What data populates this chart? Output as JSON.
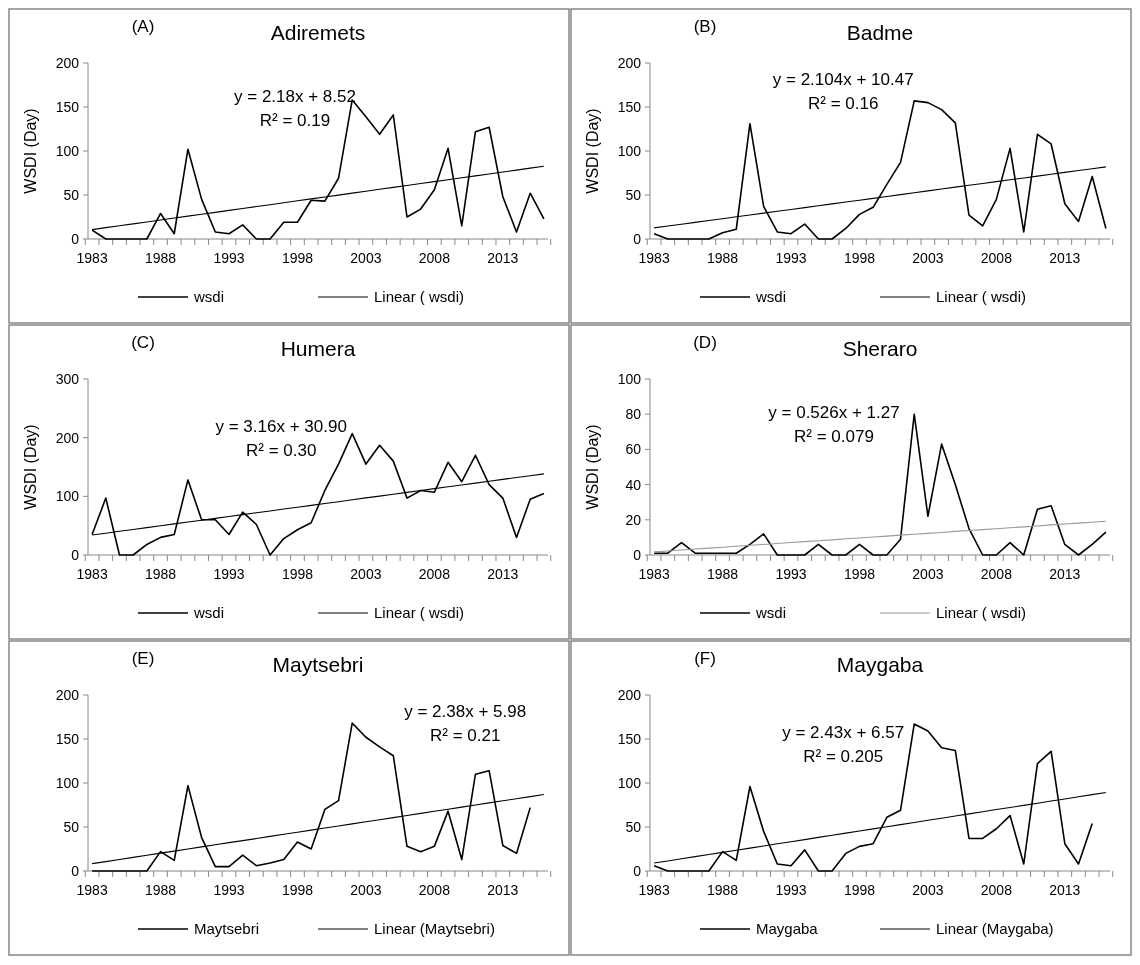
{
  "chart_data": [
    {
      "type": "line",
      "title": "Adiremets",
      "ylabel": "WSDI (Day)",
      "annotations": [
        "(A)",
        "y = 2.18x + 8.52",
        "R² = 0.19"
      ],
      "categories": [
        "1983",
        null,
        null,
        null,
        null,
        "1988",
        null,
        null,
        null,
        null,
        "1993",
        null,
        null,
        null,
        null,
        "1998",
        null,
        null,
        null,
        null,
        "2003",
        null,
        null,
        null,
        null,
        "2008",
        null,
        null,
        null,
        null,
        "2013",
        null,
        null,
        null
      ],
      "ylim": [
        0,
        200
      ],
      "yticks": [
        0,
        50,
        100,
        150,
        200
      ],
      "legend": "bottom",
      "series": [
        {
          "name": "wsdi",
          "color": "#000000",
          "values": [
            10,
            0,
            0,
            0,
            0,
            29,
            6,
            102,
            45,
            8,
            6,
            16,
            0,
            0,
            19,
            19,
            44,
            43,
            69,
            158,
            139,
            119,
            141,
            25,
            34,
            56,
            103,
            15,
            122,
            127,
            48,
            8,
            52,
            23
          ]
        },
        {
          "name": "Linear ( wsdi)",
          "color": "#000000",
          "values": [
            10.7,
            12.9,
            15.1,
            17.2,
            19.4,
            21.6,
            23.8,
            26.0,
            28.1,
            30.3,
            32.5,
            34.7,
            36.9,
            39.0,
            41.2,
            43.4,
            45.6,
            47.8,
            49.9,
            52.1,
            54.3,
            56.5,
            58.7,
            60.8,
            63.0,
            65.2,
            67.4,
            69.6,
            71.7,
            73.9,
            76.1,
            78.3,
            80.5,
            82.6
          ]
        }
      ]
    },
    {
      "type": "line",
      "title": "Badme",
      "ylabel": "WSDI (Day)",
      "annotations": [
        "(B)",
        "y = 2.104x + 10.47",
        "R² = 0.16"
      ],
      "categories": [
        "1983",
        null,
        null,
        null,
        null,
        "1988",
        null,
        null,
        null,
        null,
        "1993",
        null,
        null,
        null,
        null,
        "1998",
        null,
        null,
        null,
        null,
        "2003",
        null,
        null,
        null,
        null,
        "2008",
        null,
        null,
        null,
        null,
        "2013",
        null,
        null,
        null
      ],
      "ylim": [
        0,
        200
      ],
      "yticks": [
        0,
        50,
        100,
        150,
        200
      ],
      "legend": "bottom",
      "series": [
        {
          "name": "wsdi",
          "color": "#000000",
          "values": [
            6,
            0,
            0,
            0,
            0,
            7,
            11,
            131,
            37,
            8,
            6,
            17,
            0,
            0,
            12,
            28,
            36,
            62,
            87,
            157,
            155,
            147,
            132,
            27,
            15,
            45,
            103,
            8,
            119,
            108,
            40,
            20,
            71,
            12
          ]
        },
        {
          "name": "Linear ( wsdi)",
          "color": "#000000",
          "values": [
            12.6,
            14.7,
            16.8,
            18.9,
            21.0,
            23.1,
            25.2,
            27.3,
            29.4,
            31.5,
            33.6,
            35.7,
            37.8,
            39.9,
            42.0,
            44.1,
            46.2,
            48.3,
            50.4,
            52.6,
            54.7,
            56.8,
            58.9,
            61.0,
            63.1,
            65.2,
            67.3,
            69.4,
            71.5,
            73.6,
            75.7,
            77.8,
            79.9,
            82.0
          ]
        }
      ]
    },
    {
      "type": "line",
      "title": "Humera",
      "ylabel": "WSDI (Day)",
      "annotations": [
        "(C)",
        "y = 3.16x + 30.90",
        "R² = 0.30"
      ],
      "categories": [
        "1983",
        null,
        null,
        null,
        null,
        "1988",
        null,
        null,
        null,
        null,
        "1993",
        null,
        null,
        null,
        null,
        "1998",
        null,
        null,
        null,
        null,
        "2003",
        null,
        null,
        null,
        null,
        "2008",
        null,
        null,
        null,
        null,
        "2013",
        null,
        null,
        null
      ],
      "ylim": [
        0,
        300
      ],
      "yticks": [
        0,
        100,
        200,
        300
      ],
      "legend": "bottom",
      "series": [
        {
          "name": "wsdi",
          "color": "#000000",
          "values": [
            35,
            97,
            0,
            0,
            18,
            30,
            35,
            128,
            60,
            60,
            35,
            73,
            52,
            0,
            28,
            43,
            55,
            110,
            155,
            207,
            155,
            187,
            160,
            97,
            110,
            107,
            158,
            125,
            170,
            120,
            97,
            30,
            95,
            105
          ]
        },
        {
          "name": "Linear ( wsdi)",
          "color": "#000000",
          "values": [
            34.1,
            37.2,
            40.4,
            43.5,
            46.7,
            49.9,
            53.0,
            56.2,
            59.3,
            62.5,
            65.7,
            68.8,
            72.0,
            75.1,
            78.3,
            81.5,
            84.6,
            87.8,
            90.9,
            94.1,
            97.3,
            100.4,
            103.6,
            106.7,
            109.9,
            113.1,
            116.2,
            119.4,
            122.5,
            125.7,
            128.9,
            132.0,
            135.2,
            138.3
          ]
        }
      ]
    },
    {
      "type": "line",
      "title": "Sheraro",
      "ylabel": "WSDI (Day)",
      "annotations": [
        "(D)",
        "y = 0.526x + 1.27",
        "R² = 0.079"
      ],
      "categories": [
        "1983",
        null,
        null,
        null,
        null,
        "1988",
        null,
        null,
        null,
        null,
        "1993",
        null,
        null,
        null,
        null,
        "1998",
        null,
        null,
        null,
        null,
        "2003",
        null,
        null,
        null,
        null,
        "2008",
        null,
        null,
        null,
        null,
        "2013",
        null,
        null,
        null
      ],
      "ylim": [
        0,
        100
      ],
      "yticks": [
        0,
        20,
        40,
        60,
        80,
        100
      ],
      "legend": "bottom",
      "series": [
        {
          "name": "wsdi",
          "color": "#000000",
          "values": [
            1,
            1,
            7,
            1,
            1,
            1,
            1,
            6,
            12,
            0,
            0,
            0,
            6,
            0,
            0,
            6,
            0,
            0,
            9,
            80,
            22,
            63,
            40,
            15,
            0,
            0,
            7,
            0,
            26,
            28,
            6,
            0,
            6,
            13
          ]
        },
        {
          "name": "Linear ( wsdi)",
          "color": "#999999",
          "values": [
            1.8,
            2.3,
            2.8,
            3.4,
            3.9,
            4.4,
            5.0,
            5.5,
            6.0,
            6.5,
            7.1,
            7.6,
            8.1,
            8.6,
            9.2,
            9.7,
            10.2,
            10.7,
            11.3,
            11.8,
            12.3,
            12.8,
            13.4,
            13.9,
            14.4,
            14.9,
            15.5,
            16.0,
            16.5,
            17.1,
            17.6,
            18.1,
            18.6,
            19.2
          ]
        }
      ]
    },
    {
      "type": "line",
      "title": "Maytsebri",
      "annotations": [
        "(E)",
        "y = 2.38x + 5.98",
        "R² = 0.21"
      ],
      "categories": [
        "1983",
        null,
        null,
        null,
        null,
        "1988",
        null,
        null,
        null,
        null,
        "1993",
        null,
        null,
        null,
        null,
        "1998",
        null,
        null,
        null,
        null,
        "2003",
        null,
        null,
        null,
        null,
        "2008",
        null,
        null,
        null,
        null,
        "2013",
        null,
        null,
        null
      ],
      "ylim": [
        0,
        200
      ],
      "yticks": [
        0,
        50,
        100,
        150,
        200
      ],
      "legend": "bottom",
      "series": [
        {
          "name": "Maytsebri",
          "color": "#000000",
          "values": [
            0,
            0,
            0,
            0,
            0,
            22,
            12,
            97,
            38,
            5,
            5,
            18,
            6,
            9,
            13,
            33,
            25,
            70,
            80,
            168,
            152,
            141,
            131,
            28,
            22,
            28,
            68,
            13,
            110,
            114,
            29,
            20,
            72,
            null
          ]
        },
        {
          "name": "Linear (Maytsebri)",
          "color": "#000000",
          "values": [
            8.4,
            10.7,
            13.1,
            15.5,
            17.9,
            20.3,
            22.6,
            25.0,
            27.4,
            29.8,
            32.2,
            34.5,
            36.9,
            39.3,
            41.7,
            44.1,
            46.4,
            48.8,
            51.2,
            53.6,
            56.0,
            58.3,
            60.7,
            63.1,
            65.5,
            67.9,
            70.2,
            72.6,
            75.0,
            77.4,
            79.8,
            82.1,
            84.5,
            86.9
          ]
        }
      ]
    },
    {
      "type": "line",
      "title": "Maygaba",
      "annotations": [
        "(F)",
        "y = 2.43x + 6.57",
        "R² = 0.205"
      ],
      "categories": [
        "1983",
        null,
        null,
        null,
        null,
        "1988",
        null,
        null,
        null,
        null,
        "1993",
        null,
        null,
        null,
        null,
        "1998",
        null,
        null,
        null,
        null,
        "2003",
        null,
        null,
        null,
        null,
        "2008",
        null,
        null,
        null,
        null,
        "2013",
        null,
        null,
        null
      ],
      "ylim": [
        0,
        200
      ],
      "yticks": [
        0,
        50,
        100,
        150,
        200
      ],
      "legend": "bottom",
      "series": [
        {
          "name": "Maygaba",
          "color": "#000000",
          "values": [
            6,
            0,
            0,
            0,
            0,
            22,
            12,
            96,
            45,
            8,
            6,
            24,
            0,
            0,
            20,
            28,
            31,
            61,
            69,
            167,
            159,
            140,
            137,
            37,
            37,
            48,
            63,
            8,
            122,
            136,
            31,
            8,
            54,
            null
          ]
        },
        {
          "name": "Linear (Maygaba)",
          "color": "#000000",
          "values": [
            9.0,
            11.4,
            13.9,
            16.3,
            18.7,
            21.2,
            23.6,
            26.0,
            28.4,
            30.9,
            33.3,
            35.7,
            38.2,
            40.6,
            43.0,
            45.5,
            47.9,
            50.3,
            52.7,
            55.2,
            57.6,
            60.0,
            62.5,
            64.9,
            67.3,
            69.8,
            72.2,
            74.6,
            77.0,
            79.5,
            81.9,
            84.3,
            86.8,
            89.2
          ]
        }
      ]
    }
  ]
}
